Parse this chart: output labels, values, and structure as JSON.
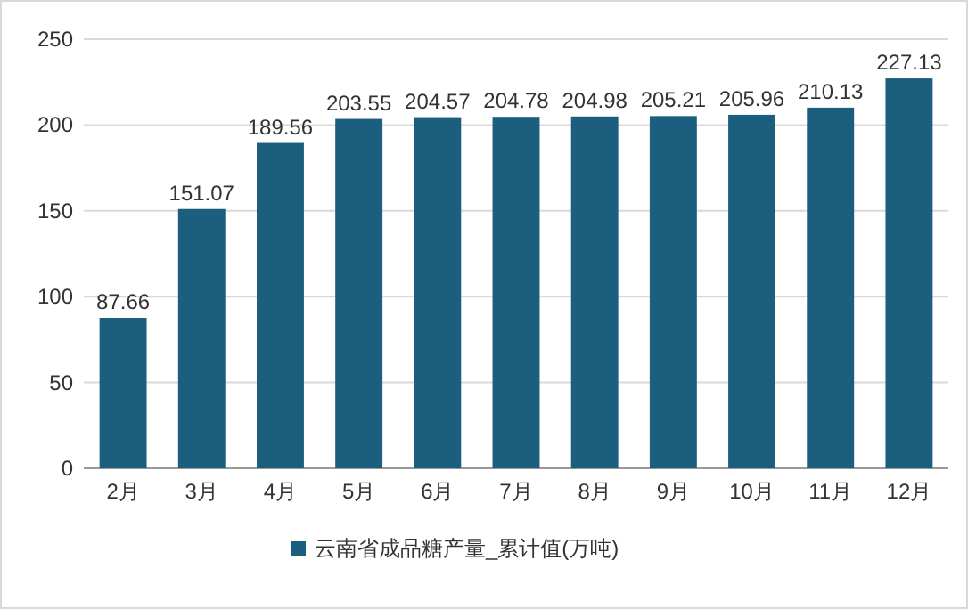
{
  "chart_data": {
    "type": "bar",
    "categories": [
      "2月",
      "3月",
      "4月",
      "5月",
      "6月",
      "7月",
      "8月",
      "9月",
      "10月",
      "11月",
      "12月"
    ],
    "series": [
      {
        "name": "云南省成品糖产量_累计值(万吨)",
        "color": "#1b5e7e",
        "values": [
          87.66,
          151.07,
          189.56,
          203.55,
          204.57,
          204.78,
          204.98,
          205.21,
          205.96,
          210.13,
          227.13
        ]
      }
    ],
    "ylim": [
      0,
      250
    ],
    "yticks": [
      0,
      50,
      100,
      150,
      200,
      250
    ],
    "grid": "y",
    "data_labels": true,
    "legend": "bottom"
  }
}
